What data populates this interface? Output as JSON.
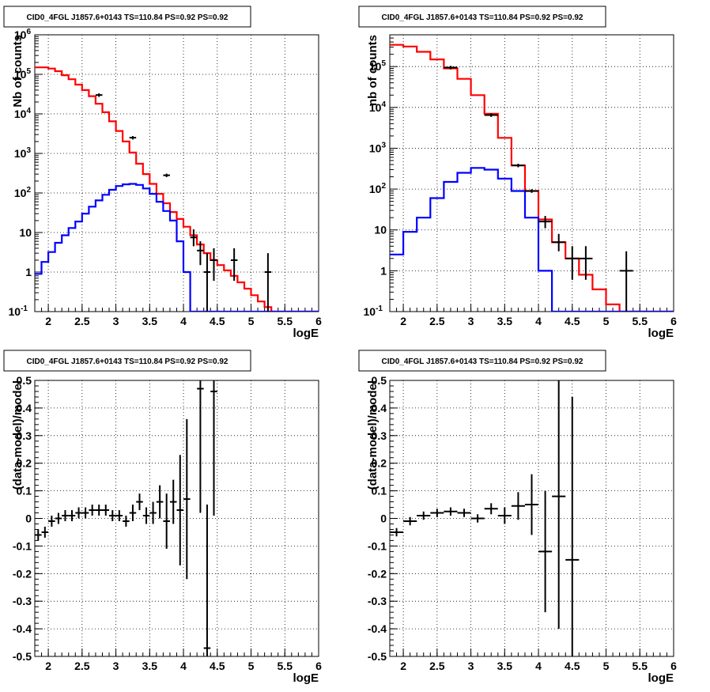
{
  "chart_data": [
    {
      "type": "line",
      "title": "CID0_4FGL J1857.6+0143 TS=110.84 PS=0.92 PS=0.92",
      "xlabel": "logE",
      "ylabel": "Nb of counts",
      "xlim": [
        1.8,
        6
      ],
      "ylim": [
        0.1,
        1000000
      ],
      "yscale": "log",
      "grid": true,
      "x_ticks": [
        "2",
        "2.5",
        "3",
        "3.5",
        "4",
        "4.5",
        "5",
        "5.5",
        "6"
      ],
      "y_ticks": [
        "10^-1",
        "1",
        "10",
        "10^2",
        "10^3",
        "10^4",
        "10^5",
        "10^6"
      ],
      "series": [
        {
          "color": "#ff0000",
          "style": "histogram",
          "bin_edges": [
            1.8,
            1.9,
            2.0,
            2.1,
            2.2,
            2.3,
            2.4,
            2.5,
            2.6,
            2.7,
            2.8,
            2.9,
            3.0,
            3.1,
            3.2,
            3.3,
            3.4,
            3.5,
            3.6,
            3.7,
            3.8,
            3.9,
            4.0,
            4.1,
            4.2,
            4.3,
            4.4,
            4.5,
            4.6,
            4.7,
            4.8,
            4.9,
            5.0,
            5.1,
            5.2,
            5.3,
            5.4,
            5.5,
            5.6,
            5.7,
            5.8,
            5.9,
            6.0
          ],
          "values": [
            150000,
            150000,
            140000,
            120000,
            95000,
            75000,
            55000,
            40000,
            28000,
            18000,
            11000,
            6500,
            3700,
            2000,
            1050,
            550,
            300,
            170,
            95,
            55,
            33,
            22,
            14,
            8.5,
            5,
            3,
            2,
            1.5,
            1.1,
            0.8,
            0.55,
            0.38,
            0.26,
            0.18,
            0.13,
            0.1,
            0.1,
            0.1,
            0.1,
            0.1,
            0.1,
            0.1
          ]
        },
        {
          "color": "#0000ff",
          "style": "histogram",
          "bin_edges": [
            1.8,
            1.9,
            2.0,
            2.1,
            2.2,
            2.3,
            2.4,
            2.5,
            2.6,
            2.7,
            2.8,
            2.9,
            3.0,
            3.1,
            3.2,
            3.3,
            3.4,
            3.5,
            3.6,
            3.7,
            3.8,
            3.9,
            4.0,
            4.1,
            4.2,
            4.3,
            4.4,
            4.5,
            4.6,
            4.7,
            4.8,
            4.9,
            5.0,
            5.1,
            5.2,
            5.3,
            5.4,
            5.5,
            5.6,
            5.7,
            5.8,
            5.9,
            6.0
          ],
          "values": [
            0.9,
            1.8,
            3.2,
            5.5,
            8.5,
            13,
            19,
            30,
            45,
            65,
            90,
            120,
            150,
            165,
            170,
            160,
            130,
            95,
            60,
            35,
            20,
            6,
            1,
            0.1,
            0.1,
            0.1,
            0.1,
            0.1,
            0.1,
            0.1,
            0.1,
            0.1,
            0.1,
            0.1,
            0.1,
            0.1,
            0.1,
            0.1,
            0.1,
            0.1,
            0.1,
            0.1
          ]
        },
        {
          "color": "#000000",
          "style": "errorbars",
          "points": [
            {
              "x": 2.75,
              "y": 30000
            },
            {
              "x": 3.25,
              "y": 2500
            },
            {
              "x": 3.75,
              "y": 280
            },
            {
              "x": 4.15,
              "y": 7.5,
              "ylo": 4.5,
              "yhi": 12
            },
            {
              "x": 4.25,
              "y": 3.5,
              "ylo": 1.5,
              "yhi": 6
            },
            {
              "x": 4.35,
              "y": 1,
              "ylo": 0.1,
              "yhi": 3
            },
            {
              "x": 4.45,
              "y": 2,
              "ylo": 0.6,
              "yhi": 4
            },
            {
              "x": 4.75,
              "y": 2,
              "ylo": 0.6,
              "yhi": 4
            },
            {
              "x": 5.25,
              "y": 1,
              "ylo": 0.1,
              "yhi": 3
            }
          ],
          "xerr": 0.05
        }
      ]
    },
    {
      "type": "line",
      "title": "CID0_4FGL J1857.6+0143 TS=110.84 PS=0.92 PS=0.92",
      "xlabel": "logE",
      "ylabel": "nb of counts",
      "xlim": [
        1.8,
        6
      ],
      "ylim": [
        0.1,
        600000
      ],
      "yscale": "log",
      "grid": true,
      "x_ticks": [
        "2",
        "2.5",
        "3",
        "3.5",
        "4",
        "4.5",
        "5",
        "5.5",
        "6"
      ],
      "y_ticks": [
        "10^-1",
        "1",
        "10",
        "10^2",
        "10^3",
        "10^4",
        "10^5"
      ],
      "series": [
        {
          "color": "#ff0000",
          "style": "histogram",
          "bin_edges": [
            1.8,
            2.0,
            2.2,
            2.4,
            2.6,
            2.8,
            3.0,
            3.2,
            3.4,
            3.6,
            3.8,
            4.0,
            4.2,
            4.4,
            4.6,
            4.8,
            5.0,
            5.2,
            5.4,
            5.6,
            5.8,
            6.0
          ],
          "values": [
            340000,
            310000,
            230000,
            150000,
            90000,
            50000,
            20000,
            7000,
            1800,
            380,
            90,
            18,
            5,
            2,
            0.8,
            0.35,
            0.15,
            0.1,
            0.1,
            0.1,
            0.1
          ]
        },
        {
          "color": "#0000ff",
          "style": "histogram",
          "bin_edges": [
            1.8,
            2.0,
            2.2,
            2.4,
            2.6,
            2.8,
            3.0,
            3.2,
            3.4,
            3.6,
            3.8,
            4.0,
            4.2,
            4.4,
            4.6,
            4.8,
            5.0,
            5.2,
            5.4,
            5.6,
            5.8,
            6.0
          ],
          "values": [
            2.5,
            9,
            20,
            60,
            150,
            250,
            330,
            300,
            180,
            90,
            20,
            1,
            0.1,
            0.1,
            0.1,
            0.1,
            0.1,
            0.1,
            0.1,
            0.1,
            0.1
          ]
        },
        {
          "color": "#000000",
          "style": "errorbars",
          "points": [
            {
              "x": 2.7,
              "y": 95000
            },
            {
              "x": 3.3,
              "y": 6500
            },
            {
              "x": 3.7,
              "y": 380
            },
            {
              "x": 3.9,
              "y": 90
            },
            {
              "x": 4.1,
              "y": 16,
              "ylo": 11,
              "yhi": 22
            },
            {
              "x": 4.3,
              "y": 5,
              "ylo": 3,
              "yhi": 8
            },
            {
              "x": 4.5,
              "y": 2,
              "ylo": 0.6,
              "yhi": 4
            },
            {
              "x": 4.7,
              "y": 2,
              "ylo": 0.6,
              "yhi": 4
            },
            {
              "x": 5.3,
              "y": 1,
              "ylo": 0.1,
              "yhi": 3
            }
          ],
          "xerr": 0.1
        }
      ]
    },
    {
      "type": "scatter",
      "title": "CID0_4FGL J1857.6+0143 TS=110.84 PS=0.92 PS=0.92",
      "xlabel": "logE",
      "ylabel": "(data-model)/model",
      "xlim": [
        1.8,
        6
      ],
      "ylim": [
        -0.5,
        0.5
      ],
      "grid": true,
      "x_ticks": [
        "2",
        "2.5",
        "3",
        "3.5",
        "4",
        "4.5",
        "5",
        "5.5",
        "6"
      ],
      "y_ticks": [
        "-0.5",
        "-0.4",
        "-0.3",
        "-0.2",
        "-0.1",
        "0",
        "0.1",
        "0.2",
        "0.3",
        "0.4",
        "0.5"
      ],
      "xerr": 0.05,
      "points": [
        {
          "x": 1.85,
          "y": -0.06,
          "err": 0.02
        },
        {
          "x": 1.95,
          "y": -0.05,
          "err": 0.02
        },
        {
          "x": 2.05,
          "y": -0.01,
          "err": 0.02
        },
        {
          "x": 2.15,
          "y": 0.0,
          "err": 0.02
        },
        {
          "x": 2.25,
          "y": 0.01,
          "err": 0.02
        },
        {
          "x": 2.35,
          "y": 0.01,
          "err": 0.02
        },
        {
          "x": 2.45,
          "y": 0.02,
          "err": 0.02
        },
        {
          "x": 2.55,
          "y": 0.02,
          "err": 0.02
        },
        {
          "x": 2.65,
          "y": 0.03,
          "err": 0.02
        },
        {
          "x": 2.75,
          "y": 0.03,
          "err": 0.02
        },
        {
          "x": 2.85,
          "y": 0.03,
          "err": 0.02
        },
        {
          "x": 2.95,
          "y": 0.01,
          "err": 0.02
        },
        {
          "x": 3.05,
          "y": 0.01,
          "err": 0.02
        },
        {
          "x": 3.15,
          "y": -0.01,
          "err": 0.02
        },
        {
          "x": 3.25,
          "y": 0.02,
          "err": 0.03
        },
        {
          "x": 3.35,
          "y": 0.06,
          "err": 0.03
        },
        {
          "x": 3.45,
          "y": 0.01,
          "err": 0.03
        },
        {
          "x": 3.55,
          "y": 0.02,
          "err": 0.04
        },
        {
          "x": 3.65,
          "y": 0.06,
          "err": 0.06
        },
        {
          "x": 3.75,
          "y": -0.01,
          "err": 0.1
        },
        {
          "x": 3.85,
          "y": 0.06,
          "err": 0.08
        },
        {
          "x": 3.95,
          "y": 0.03,
          "err": 0.2
        },
        {
          "x": 4.05,
          "y": 0.07,
          "err": 0.29
        },
        {
          "x": 4.25,
          "y": 0.47,
          "err": 0.45
        },
        {
          "x": 4.35,
          "y": -0.47,
          "err": 0.52
        },
        {
          "x": 4.45,
          "y": 0.46,
          "err": 0.45
        }
      ]
    },
    {
      "type": "scatter",
      "title": "CID0_4FGL J1857.6+0143 TS=110.84 PS=0.92 PS=0.92",
      "xlabel": "logE",
      "ylabel": "(data-model)/model",
      "xlim": [
        1.8,
        6
      ],
      "ylim": [
        -0.5,
        0.5
      ],
      "grid": true,
      "x_ticks": [
        "2",
        "2.5",
        "3",
        "3.5",
        "4",
        "4.5",
        "5",
        "5.5",
        "6"
      ],
      "y_ticks": [
        "-0.5",
        "-0.4",
        "-0.3",
        "-0.2",
        "-0.1",
        "0",
        "0.1",
        "0.2",
        "0.3",
        "0.4",
        "0.5"
      ],
      "xerr": 0.1,
      "points": [
        {
          "x": 1.9,
          "y": -0.05,
          "err": 0.015
        },
        {
          "x": 2.1,
          "y": -0.01,
          "err": 0.015
        },
        {
          "x": 2.3,
          "y": 0.01,
          "err": 0.015
        },
        {
          "x": 2.5,
          "y": 0.02,
          "err": 0.015
        },
        {
          "x": 2.7,
          "y": 0.025,
          "err": 0.015
        },
        {
          "x": 2.9,
          "y": 0.02,
          "err": 0.015
        },
        {
          "x": 3.1,
          "y": 0.0,
          "err": 0.015
        },
        {
          "x": 3.3,
          "y": 0.035,
          "err": 0.02
        },
        {
          "x": 3.5,
          "y": 0.01,
          "err": 0.03
        },
        {
          "x": 3.7,
          "y": 0.045,
          "err": 0.05
        },
        {
          "x": 3.9,
          "y": 0.05,
          "err": 0.11
        },
        {
          "x": 4.1,
          "y": -0.12,
          "err": 0.22
        },
        {
          "x": 4.3,
          "y": 0.08,
          "err": 0.48
        },
        {
          "x": 4.5,
          "y": -0.15,
          "err": 0.59
        }
      ]
    }
  ]
}
